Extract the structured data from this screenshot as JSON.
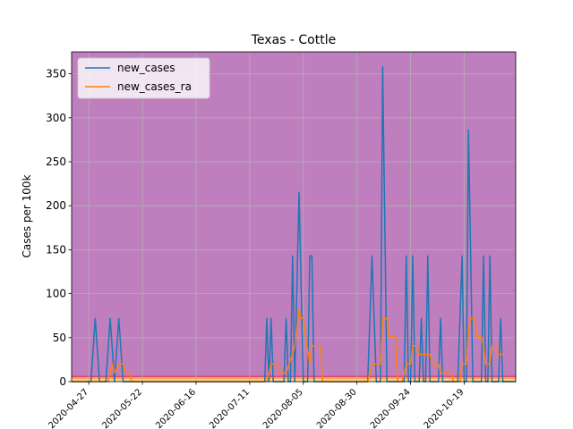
{
  "chart_data": {
    "type": "line",
    "title": "Texas - Cottle",
    "xlabel": "",
    "ylabel": "Cases per 100k",
    "ylim": [
      0,
      375
    ],
    "yticks": [
      0,
      50,
      100,
      150,
      200,
      250,
      300,
      350
    ],
    "x_start": "2020-04-19",
    "x_end": "2020-11-12",
    "xticks": [
      "2020-04-27",
      "2020-05-22",
      "2020-06-16",
      "2020-07-11",
      "2020-08-05",
      "2020-08-30",
      "2020-09-24",
      "2020-10-19",
      "2020-11-13"
    ],
    "xtick_labels": [
      "2020-04-27",
      "2020-05-22",
      "2020-06-16",
      "2020-07-11",
      "2020-08-05",
      "2020-08-30",
      "2020-09-24",
      "2020-10-19",
      ""
    ],
    "grid": true,
    "legend_position": "top-left",
    "background_bands": [
      {
        "from": 0,
        "to": 1,
        "color": "#fff3a6"
      },
      {
        "from": 1,
        "to": 3,
        "color": "#ffd27f"
      },
      {
        "from": 3,
        "to": 5,
        "color": "#ffa35c"
      },
      {
        "from": 5,
        "to": 7,
        "color": "#e0446e"
      },
      {
        "from": 7,
        "to": 375,
        "color": "#bf7fbf"
      }
    ],
    "series": [
      {
        "name": "new_cases",
        "color": "#1f77b4",
        "points": [
          [
            "2020-04-19",
            0
          ],
          [
            "2020-04-28",
            0
          ],
          [
            "2020-04-30",
            72
          ],
          [
            "2020-05-02",
            0
          ],
          [
            "2020-05-05",
            0
          ],
          [
            "2020-05-07",
            72
          ],
          [
            "2020-05-09",
            0
          ],
          [
            "2020-05-11",
            72
          ],
          [
            "2020-05-13",
            0
          ],
          [
            "2020-07-18",
            0
          ],
          [
            "2020-07-19",
            72
          ],
          [
            "2020-07-20",
            0
          ],
          [
            "2020-07-21",
            72
          ],
          [
            "2020-07-22",
            0
          ],
          [
            "2020-07-27",
            0
          ],
          [
            "2020-07-28",
            72
          ],
          [
            "2020-07-29",
            0
          ],
          [
            "2020-07-30",
            0
          ],
          [
            "2020-07-31",
            143
          ],
          [
            "2020-08-01",
            0
          ],
          [
            "2020-08-03",
            215
          ],
          [
            "2020-08-05",
            0
          ],
          [
            "2020-08-07",
            0
          ],
          [
            "2020-08-08",
            143
          ],
          [
            "2020-08-09",
            143
          ],
          [
            "2020-08-10",
            0
          ],
          [
            "2020-09-04",
            0
          ],
          [
            "2020-09-06",
            143
          ],
          [
            "2020-09-08",
            0
          ],
          [
            "2020-09-10",
            0
          ],
          [
            "2020-09-11",
            358
          ],
          [
            "2020-09-13",
            0
          ],
          [
            "2020-09-21",
            0
          ],
          [
            "2020-09-22",
            143
          ],
          [
            "2020-09-23",
            0
          ],
          [
            "2020-09-24",
            0
          ],
          [
            "2020-09-25",
            143
          ],
          [
            "2020-09-26",
            0
          ],
          [
            "2020-09-28",
            0
          ],
          [
            "2020-09-29",
            72
          ],
          [
            "2020-09-30",
            0
          ],
          [
            "2020-10-01",
            0
          ],
          [
            "2020-10-02",
            143
          ],
          [
            "2020-10-03",
            0
          ],
          [
            "2020-10-07",
            0
          ],
          [
            "2020-10-08",
            72
          ],
          [
            "2020-10-09",
            0
          ],
          [
            "2020-10-16",
            0
          ],
          [
            "2020-10-18",
            143
          ],
          [
            "2020-10-19",
            0
          ],
          [
            "2020-10-20",
            0
          ],
          [
            "2020-10-21",
            286
          ],
          [
            "2020-10-23",
            0
          ],
          [
            "2020-10-27",
            0
          ],
          [
            "2020-10-28",
            143
          ],
          [
            "2020-10-29",
            0
          ],
          [
            "2020-10-30",
            0
          ],
          [
            "2020-10-31",
            143
          ],
          [
            "2020-11-01",
            0
          ],
          [
            "2020-11-04",
            0
          ],
          [
            "2020-11-05",
            72
          ],
          [
            "2020-11-06",
            0
          ],
          [
            "2020-11-12",
            0
          ]
        ]
      },
      {
        "name": "new_cases_ra",
        "color": "#ff7f0e",
        "points": [
          [
            "2020-04-19",
            0
          ],
          [
            "2020-05-06",
            0
          ],
          [
            "2020-05-07",
            10
          ],
          [
            "2020-05-08",
            20
          ],
          [
            "2020-05-09",
            10
          ],
          [
            "2020-05-11",
            20
          ],
          [
            "2020-05-13",
            20
          ],
          [
            "2020-05-14",
            10
          ],
          [
            "2020-05-16",
            10
          ],
          [
            "2020-05-17",
            0
          ],
          [
            "2020-07-19",
            0
          ],
          [
            "2020-07-20",
            10
          ],
          [
            "2020-07-21",
            20
          ],
          [
            "2020-07-24",
            20
          ],
          [
            "2020-07-25",
            10
          ],
          [
            "2020-07-28",
            10
          ],
          [
            "2020-07-31",
            31
          ],
          [
            "2020-08-01",
            41
          ],
          [
            "2020-08-03",
            82
          ],
          [
            "2020-08-04",
            72
          ],
          [
            "2020-08-05",
            72
          ],
          [
            "2020-08-06",
            51
          ],
          [
            "2020-08-08",
            20
          ],
          [
            "2020-08-09",
            41
          ],
          [
            "2020-08-13",
            41
          ],
          [
            "2020-08-14",
            0
          ],
          [
            "2020-09-04",
            0
          ],
          [
            "2020-09-06",
            20
          ],
          [
            "2020-09-10",
            20
          ],
          [
            "2020-09-11",
            72
          ],
          [
            "2020-09-13",
            72
          ],
          [
            "2020-09-14",
            51
          ],
          [
            "2020-09-17",
            51
          ],
          [
            "2020-09-18",
            0
          ],
          [
            "2020-09-20",
            0
          ],
          [
            "2020-09-22",
            20
          ],
          [
            "2020-09-24",
            20
          ],
          [
            "2020-09-25",
            41
          ],
          [
            "2020-09-27",
            41
          ],
          [
            "2020-09-28",
            31
          ],
          [
            "2020-10-03",
            31
          ],
          [
            "2020-10-04",
            20
          ],
          [
            "2020-10-07",
            20
          ],
          [
            "2020-10-08",
            10
          ],
          [
            "2020-10-13",
            10
          ],
          [
            "2020-10-14",
            0
          ],
          [
            "2020-10-17",
            0
          ],
          [
            "2020-10-18",
            20
          ],
          [
            "2020-10-20",
            20
          ],
          [
            "2020-10-21",
            61
          ],
          [
            "2020-10-22",
            72
          ],
          [
            "2020-10-24",
            72
          ],
          [
            "2020-10-25",
            51
          ],
          [
            "2020-10-27",
            51
          ],
          [
            "2020-10-28",
            41
          ],
          [
            "2020-10-29",
            20
          ],
          [
            "2020-10-31",
            20
          ],
          [
            "2020-11-01",
            41
          ],
          [
            "2020-11-03",
            41
          ],
          [
            "2020-11-04",
            31
          ],
          [
            "2020-11-06",
            31
          ]
        ]
      }
    ]
  }
}
